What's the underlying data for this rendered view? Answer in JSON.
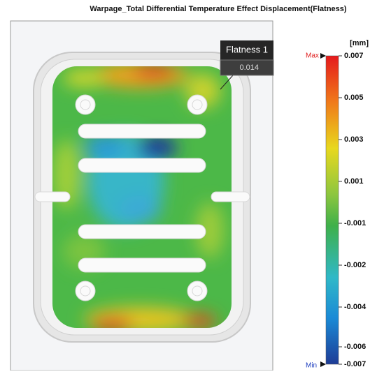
{
  "title": "Warpage_Total Differential Temperature Effect Displacement(Flatness)",
  "probe": {
    "label": "Flatness 1",
    "value": "0.014"
  },
  "legend": {
    "unit": "[mm]",
    "max_label": "Max",
    "min_label": "Min",
    "labels": [
      "0.007",
      "0.005",
      "0.003",
      "0.001",
      "-0.001",
      "-0.002",
      "-0.004",
      "-0.006",
      "-0.007"
    ]
  }
}
